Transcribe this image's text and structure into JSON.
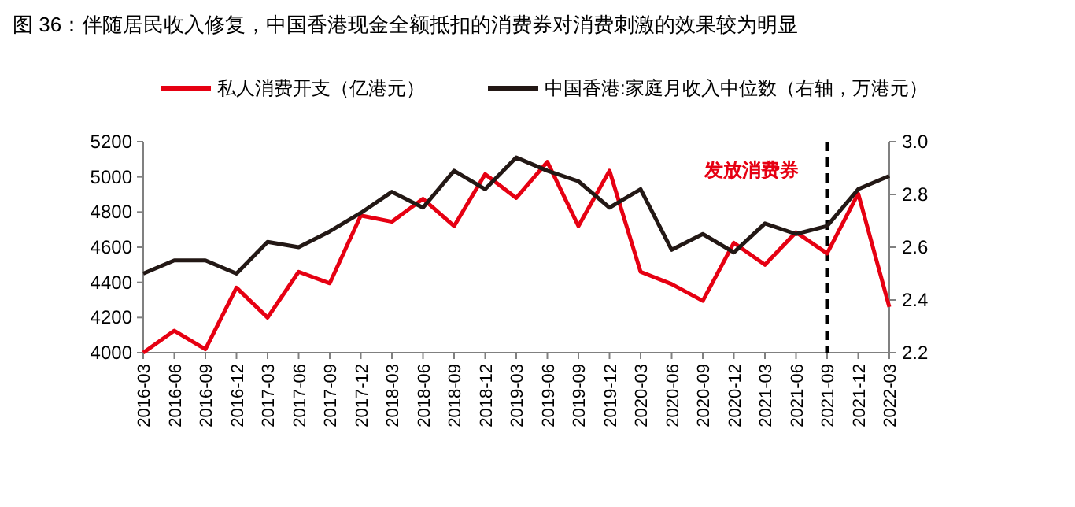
{
  "chart_data": {
    "type": "line",
    "title": "图 36：伴随居民收入修复，中国香港现金全额抵扣的消费券对消费刺激的效果较为明显",
    "categories": [
      "2016-03",
      "2016-06",
      "2016-09",
      "2016-12",
      "2017-03",
      "2017-06",
      "2017-09",
      "2017-12",
      "2018-03",
      "2018-06",
      "2018-09",
      "2018-12",
      "2019-03",
      "2019-06",
      "2019-09",
      "2019-12",
      "2020-03",
      "2020-06",
      "2020-09",
      "2020-12",
      "2021-03",
      "2021-06",
      "2021-09",
      "2021-12",
      "2022-03"
    ],
    "series": [
      {
        "name": "私人消费开支（亿港元）",
        "color": "#e60012",
        "values": [
          4000,
          4125,
          4020,
          4370,
          4200,
          4460,
          4395,
          4780,
          4745,
          4875,
          4720,
          5015,
          4880,
          5085,
          4720,
          5035,
          4460,
          4390,
          4295,
          4625,
          4500,
          4685,
          4565,
          4905,
          4260
        ]
      },
      {
        "name": "中国香港:家庭月收入中位数（右轴，万港元）",
        "color": "#231815",
        "axis": "y2",
        "values": [
          2.5,
          2.55,
          2.55,
          2.5,
          2.62,
          2.6,
          2.66,
          2.73,
          2.81,
          2.75,
          2.89,
          2.82,
          2.94,
          2.89,
          2.85,
          2.75,
          2.82,
          2.59,
          2.65,
          2.58,
          2.69,
          2.65,
          2.68,
          2.82,
          2.87
        ]
      }
    ],
    "ylim": [
      4000,
      5200
    ],
    "yticks": [
      4000,
      4200,
      4400,
      4600,
      4800,
      5000,
      5200
    ],
    "y2lim": [
      2.2,
      3.0
    ],
    "y2ticks": [
      {
        "value": 2.2,
        "label": "2.2"
      },
      {
        "value": 2.4,
        "label": "2.4"
      },
      {
        "value": 2.6,
        "label": "2.6"
      },
      {
        "value": 2.8,
        "label": "2.8"
      },
      {
        "value": 3.0,
        "label": "3.0"
      }
    ],
    "ref_lines": [
      {
        "axis": "x",
        "value": "2021-09",
        "label": "发放消费券",
        "color": "#000000",
        "line_style": "dashed"
      }
    ],
    "legend": "top",
    "grid": false,
    "marker": "none",
    "line_style": "solid"
  }
}
